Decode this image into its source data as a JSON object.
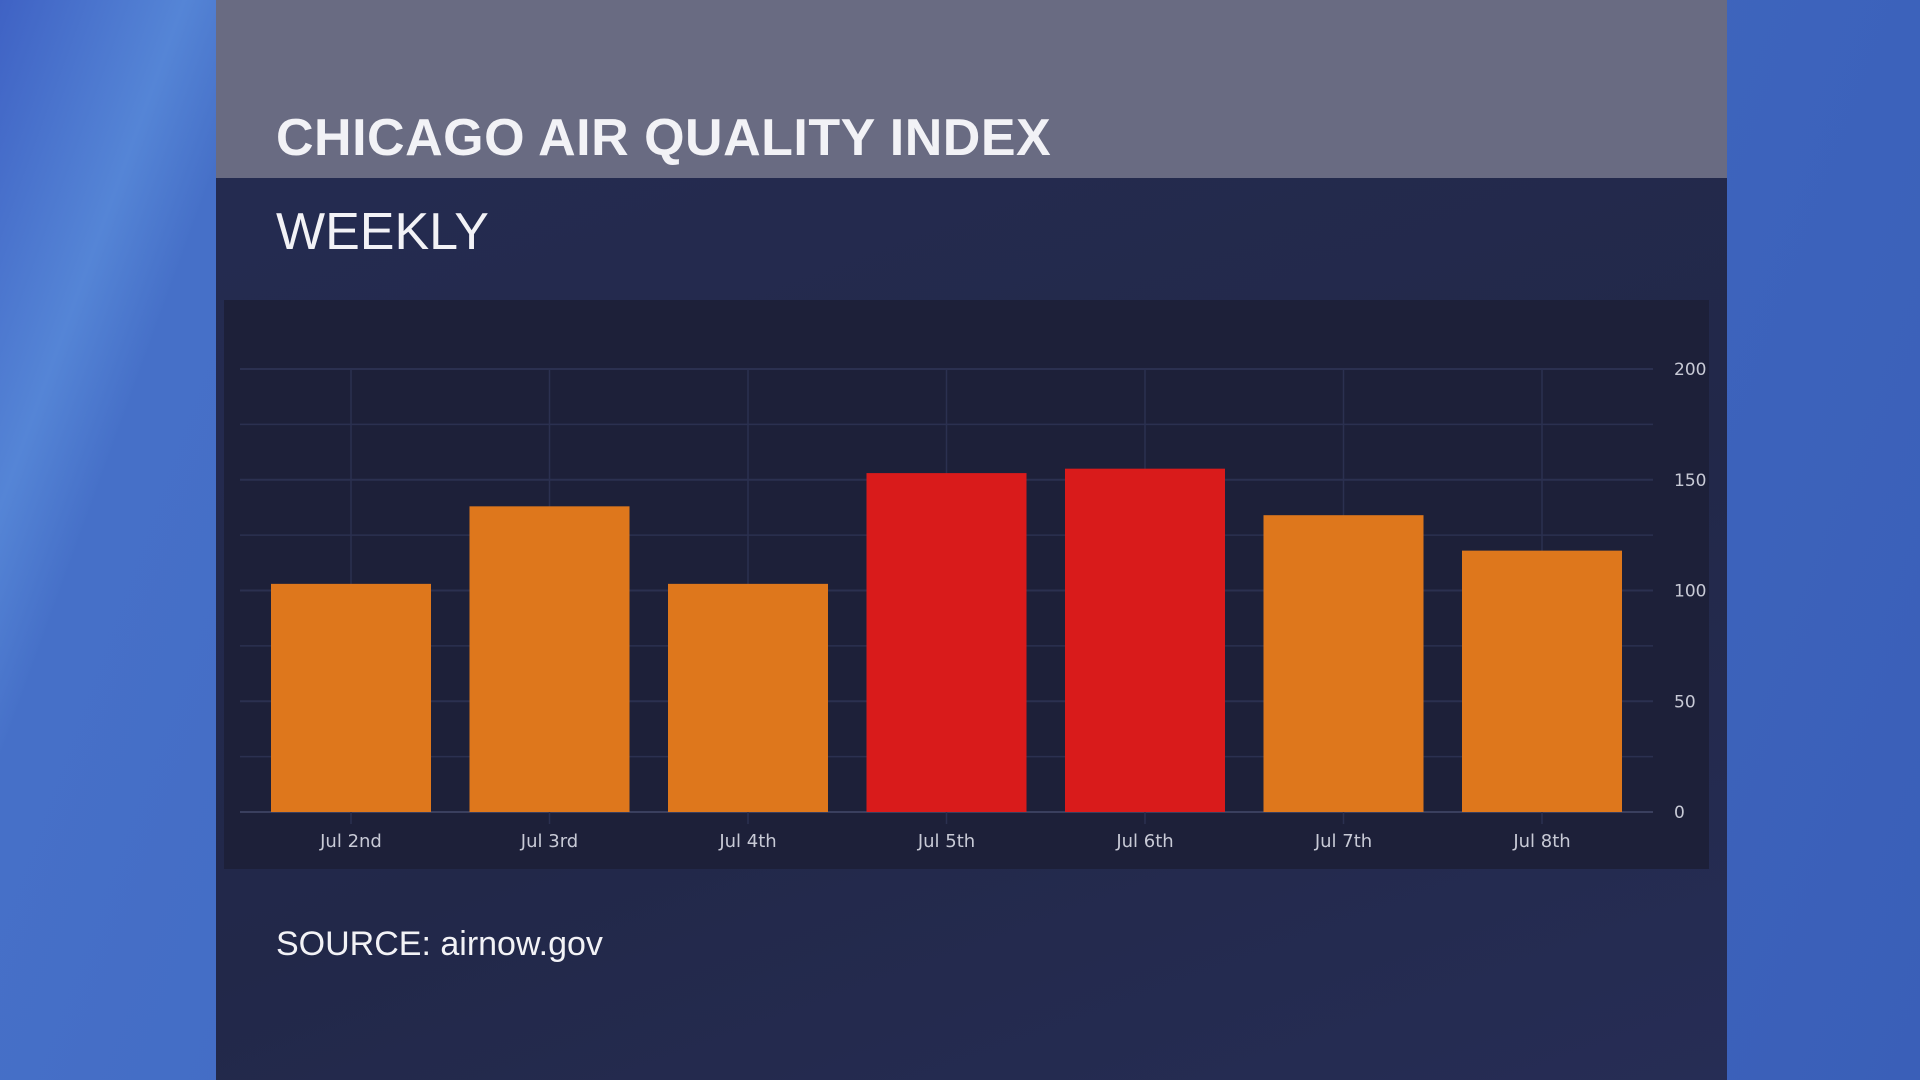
{
  "header": {
    "title": "CHICAGO AIR QUALITY INDEX",
    "subtitle": "WEEKLY"
  },
  "footer": {
    "source": "SOURCE: airnow.gov"
  },
  "colors": {
    "orange": "#de771c",
    "red": "#d91b1b",
    "background": "#1d2039"
  },
  "chart_data": {
    "type": "bar",
    "title": "CHICAGO AIR QUALITY INDEX",
    "subtitle": "WEEKLY",
    "categories": [
      "Jul 2nd",
      "Jul 3rd",
      "Jul 4th",
      "Jul 5th",
      "Jul 6th",
      "Jul 7th",
      "Jul 8th"
    ],
    "values": [
      103,
      138,
      103,
      153,
      155,
      134,
      118
    ],
    "bar_colors": [
      "#de771c",
      "#de771c",
      "#de771c",
      "#d91b1b",
      "#d91b1b",
      "#de771c",
      "#de771c"
    ],
    "ylim": [
      0,
      200
    ],
    "yticks": [
      0,
      50,
      100,
      150,
      200
    ],
    "yaxis_side": "right",
    "grid": true,
    "xlabel": "",
    "ylabel": ""
  }
}
